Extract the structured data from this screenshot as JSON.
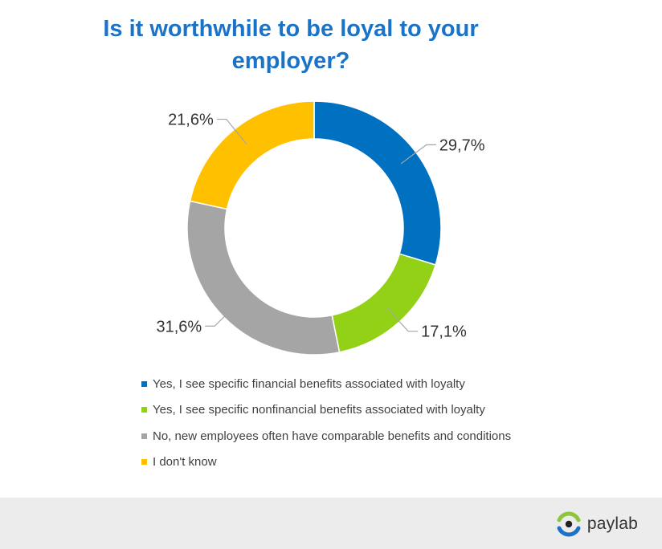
{
  "title": {
    "line1": "Is it worthwhile to be loyal to your",
    "line2": "employer?"
  },
  "chart_data": {
    "type": "pie",
    "donut": true,
    "title": "Is it worthwhile to be loyal to your employer?",
    "legend_position": "bottom",
    "series": [
      {
        "name": "Yes, I see specific financial benefits associated with loyalty",
        "value": 29.7,
        "label": "29,7%",
        "color": "#0070c0"
      },
      {
        "name": "Yes, I see specific nonfinancial benefits associated with loyalty",
        "value": 17.1,
        "label": "17,1%",
        "color": "#92d116"
      },
      {
        "name": "No, new employees often have comparable benefits and conditions",
        "value": 31.6,
        "label": "31,6%",
        "color": "#a5a5a5"
      },
      {
        "name": "I don't know",
        "value": 21.6,
        "label": "21,6%",
        "color": "#ffc000"
      }
    ]
  },
  "brand": {
    "name": "paylab",
    "icon": "eye-logo-icon"
  }
}
